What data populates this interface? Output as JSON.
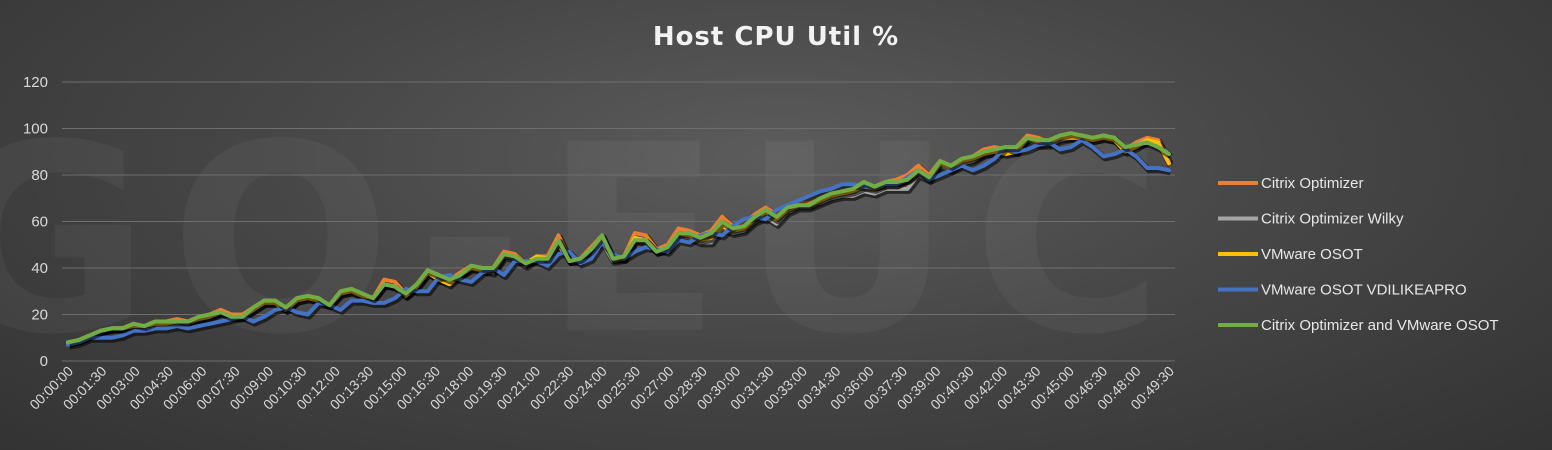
{
  "chart_data": {
    "type": "line",
    "title": "Host CPU Util %",
    "xlabel": "",
    "ylabel": "",
    "ylim": [
      0,
      120
    ],
    "yticks": [
      0,
      20,
      40,
      60,
      80,
      100,
      120
    ],
    "grid": true,
    "legend_position": "right",
    "x_tick_labels": [
      "00:00:00",
      "00:01:30",
      "00:03:00",
      "00:04:30",
      "00:06:00",
      "00:07:30",
      "00:09:00",
      "00:10:30",
      "00:12:00",
      "00:13:30",
      "00:15:00",
      "00:16:30",
      "00:18:00",
      "00:19:30",
      "00:21:00",
      "00:22:30",
      "00:24:00",
      "00:25:30",
      "00:27:00",
      "00:28:30",
      "00:30:00",
      "00:31:30",
      "00:33:00",
      "00:34:30",
      "00:36:00",
      "00:37:30",
      "00:39:00",
      "00:40:30",
      "00:42:00",
      "00:43:30",
      "00:45:00",
      "00:46:30",
      "00:48:00",
      "00:49:30"
    ],
    "series": [
      {
        "name": "Citrix Optimizer",
        "color": "#ED7D31",
        "values": [
          8,
          9,
          11,
          13,
          14,
          14,
          16,
          15,
          17,
          17,
          18,
          17,
          19,
          20,
          22,
          20,
          20,
          23,
          26,
          26,
          23,
          27,
          28,
          27,
          24,
          30,
          31,
          29,
          27,
          35,
          34,
          29,
          33,
          39,
          37,
          35,
          38,
          41,
          40,
          40,
          47,
          46,
          42,
          45,
          45,
          54,
          44,
          44,
          49,
          54,
          44,
          45,
          55,
          54,
          48,
          50,
          57,
          56,
          54,
          56,
          62,
          58,
          59,
          63,
          66,
          63,
          66,
          68,
          68,
          70,
          72,
          73,
          74,
          76,
          75,
          77,
          78,
          80,
          84,
          80,
          86,
          84,
          87,
          88,
          91,
          92,
          91,
          92,
          97,
          96,
          94,
          96,
          97,
          97,
          96,
          97,
          96,
          91,
          94,
          96,
          95,
          86
        ]
      },
      {
        "name": "Citrix Optimizer Wilky",
        "color": "#A5A5A5",
        "values": [
          8,
          9,
          11,
          13,
          14,
          14,
          15,
          15,
          16,
          16,
          17,
          16,
          18,
          19,
          21,
          19,
          19,
          22,
          25,
          25,
          22,
          26,
          27,
          26,
          24,
          29,
          30,
          28,
          27,
          33,
          32,
          28,
          32,
          38,
          35,
          34,
          37,
          40,
          39,
          38,
          45,
          44,
          41,
          44,
          43,
          50,
          43,
          43,
          48,
          51,
          43,
          44,
          52,
          51,
          47,
          48,
          54,
          53,
          51,
          51,
          57,
          55,
          56,
          60,
          62,
          59,
          64,
          66,
          66,
          68,
          70,
          71,
          71,
          73,
          72,
          74,
          74,
          74,
          80,
          78,
          84,
          82,
          85,
          86,
          89,
          90,
          90,
          90,
          95,
          93,
          93,
          95,
          96,
          96,
          95,
          96,
          95,
          91,
          93,
          95,
          93,
          89
        ]
      },
      {
        "name": "VMware OSOT",
        "color": "#FFC000",
        "values": [
          8,
          9,
          11,
          13,
          14,
          14,
          15,
          15,
          16,
          16,
          17,
          17,
          18,
          19,
          21,
          19,
          19,
          22,
          25,
          25,
          22,
          26,
          27,
          26,
          24,
          29,
          30,
          28,
          27,
          33,
          32,
          28,
          32,
          38,
          35,
          33,
          37,
          40,
          39,
          39,
          46,
          45,
          42,
          45,
          44,
          52,
          43,
          44,
          48,
          53,
          44,
          44,
          53,
          52,
          47,
          49,
          55,
          54,
          52,
          53,
          58,
          56,
          57,
          61,
          64,
          61,
          65,
          67,
          67,
          69,
          71,
          72,
          73,
          75,
          74,
          76,
          76,
          78,
          81,
          79,
          85,
          83,
          86,
          87,
          89,
          90,
          89,
          90,
          96,
          94,
          94,
          96,
          96,
          96,
          95,
          96,
          95,
          90,
          92,
          95,
          94,
          85
        ]
      },
      {
        "name": "VMware OSOT VDILIKEAPRO",
        "color": "#4472C4",
        "values": [
          7,
          8,
          10,
          10,
          10,
          11,
          13,
          13,
          14,
          14,
          15,
          14,
          15,
          16,
          17,
          18,
          19,
          17,
          19,
          22,
          23,
          21,
          20,
          25,
          24,
          22,
          26,
          26,
          25,
          25,
          27,
          31,
          30,
          30,
          36,
          37,
          35,
          34,
          38,
          40,
          37,
          43,
          43,
          43,
          41,
          46,
          47,
          42,
          44,
          51,
          46,
          44,
          47,
          49,
          48,
          47,
          52,
          51,
          54,
          55,
          54,
          58,
          61,
          62,
          61,
          65,
          67,
          69,
          71,
          73,
          74,
          76,
          76,
          75,
          75,
          76,
          76,
          79,
          82,
          78,
          80,
          82,
          84,
          82,
          84,
          87,
          92,
          90,
          91,
          93,
          94,
          91,
          92,
          95,
          92,
          88,
          89,
          91,
          88,
          83,
          83,
          82
        ]
      },
      {
        "name": "Citrix Optimizer and VMware OSOT",
        "color": "#70AD47",
        "values": [
          8,
          9,
          11,
          13,
          14,
          14,
          16,
          15,
          17,
          17,
          17,
          17,
          19,
          20,
          21,
          19,
          19,
          23,
          26,
          26,
          23,
          27,
          28,
          27,
          24,
          30,
          31,
          29,
          27,
          33,
          32,
          29,
          33,
          39,
          37,
          35,
          37,
          41,
          40,
          40,
          46,
          45,
          42,
          44,
          44,
          52,
          43,
          44,
          48,
          54,
          44,
          45,
          52,
          52,
          47,
          49,
          55,
          55,
          53,
          55,
          60,
          57,
          58,
          62,
          65,
          62,
          66,
          67,
          67,
          70,
          72,
          73,
          74,
          77,
          75,
          77,
          77,
          78,
          82,
          79,
          86,
          84,
          87,
          88,
          90,
          91,
          92,
          92,
          96,
          95,
          95,
          97,
          98,
          97,
          96,
          97,
          96,
          92,
          93,
          94,
          92,
          89
        ]
      }
    ]
  },
  "watermark": "GO-EUC"
}
